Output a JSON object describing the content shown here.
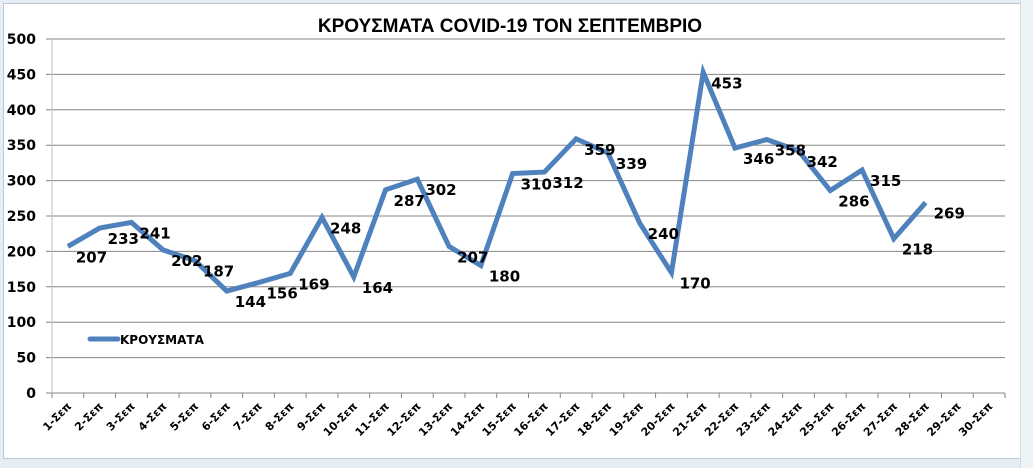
{
  "chart_data": {
    "type": "line",
    "title": "ΚΡΟΥΣΜΑΤΑ COVID-19 ΤΟΝ ΣΕΠΤΕΜΒΡΙΟ",
    "xlabel": "",
    "ylabel": "",
    "ylim": [
      0,
      500
    ],
    "yticks": [
      0,
      50,
      100,
      150,
      200,
      250,
      300,
      350,
      400,
      450,
      500
    ],
    "grid": true,
    "legend_position": "inside-left",
    "categories": [
      "1-Σεπ",
      "2-Σεπ",
      "3-Σεπ",
      "4-Σεπ",
      "5-Σεπ",
      "6-Σεπ",
      "7-Σεπ",
      "8-Σεπ",
      "9-Σεπ",
      "10-Σεπ",
      "11-Σεπ",
      "12-Σεπ",
      "13-Σεπ",
      "14-Σεπ",
      "15-Σεπ",
      "16-Σεπ",
      "17-Σεπ",
      "18-Σεπ",
      "19-Σεπ",
      "20-Σεπ",
      "21-Σεπ",
      "22-Σεπ",
      "23-Σεπ",
      "24-Σεπ",
      "25-Σεπ",
      "26-Σεπ",
      "27-Σεπ",
      "28-Σεπ",
      "29-Σεπ",
      "30-Σεπ"
    ],
    "series": [
      {
        "name": "ΚΡΟΥΣΜΑΤΑ",
        "color": "#4f81bd",
        "values": [
          207,
          233,
          241,
          202,
          187,
          144,
          156,
          169,
          248,
          164,
          287,
          302,
          207,
          180,
          310,
          312,
          359,
          339,
          240,
          170,
          453,
          346,
          358,
          342,
          286,
          315,
          218,
          269,
          null,
          null
        ]
      }
    ]
  },
  "colors": {
    "line": "#4f81bd",
    "grid": "#868686",
    "background": "#ffffff"
  }
}
